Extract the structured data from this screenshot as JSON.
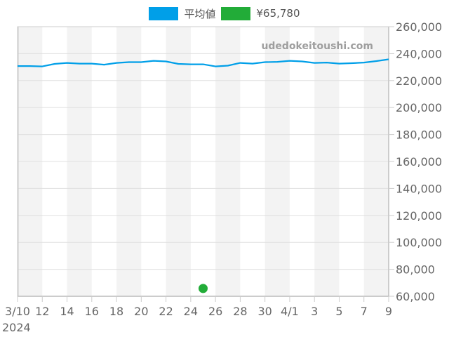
{
  "legend": {
    "items": [
      {
        "label": "平均値",
        "color": "#009fe8"
      },
      {
        "label": "¥65,780",
        "color": "#22ac38"
      }
    ]
  },
  "watermark": "udedokeitoushi.com",
  "chart_data": {
    "type": "line",
    "title": "",
    "xlabel": "",
    "ylabel": "",
    "ylim": [
      60000,
      260000
    ],
    "y_ticks": [
      60000,
      80000,
      100000,
      120000,
      140000,
      160000,
      180000,
      200000,
      220000,
      240000,
      260000
    ],
    "y_tick_labels": [
      "60,000",
      "80,000",
      "100,000",
      "120,000",
      "140,000",
      "160,000",
      "180,000",
      "200,000",
      "220,000",
      "240,000",
      "260,000"
    ],
    "x_tick_labels": [
      "3/10",
      "12",
      "14",
      "16",
      "18",
      "20",
      "22",
      "24",
      "26",
      "28",
      "30",
      "4/1",
      "3",
      "5",
      "7",
      "9"
    ],
    "x_year_label": "2024",
    "grid": true,
    "legend_position": "top",
    "x": [
      "3/10",
      "3/11",
      "3/12",
      "3/13",
      "3/14",
      "3/15",
      "3/16",
      "3/17",
      "3/18",
      "3/19",
      "3/20",
      "3/21",
      "3/22",
      "3/23",
      "3/24",
      "3/25",
      "3/26",
      "3/27",
      "3/28",
      "3/29",
      "3/30",
      "3/31",
      "4/1",
      "4/2",
      "4/3",
      "4/4",
      "4/5",
      "4/6",
      "4/7",
      "4/8",
      "4/9"
    ],
    "series": [
      {
        "name": "平均値",
        "color": "#009fe8",
        "values": [
          230800,
          230800,
          230500,
          232400,
          233100,
          232600,
          232600,
          231800,
          233100,
          233700,
          233700,
          234700,
          234200,
          232400,
          232100,
          232100,
          230500,
          231100,
          233100,
          232600,
          233700,
          233900,
          234700,
          234200,
          233100,
          233400,
          232600,
          232900,
          233400,
          234500,
          235800
        ]
      },
      {
        "name": "¥65,780",
        "color": "#22ac38",
        "type": "scatter",
        "points": [
          {
            "x": "3/25",
            "y": 65780
          }
        ]
      }
    ]
  }
}
